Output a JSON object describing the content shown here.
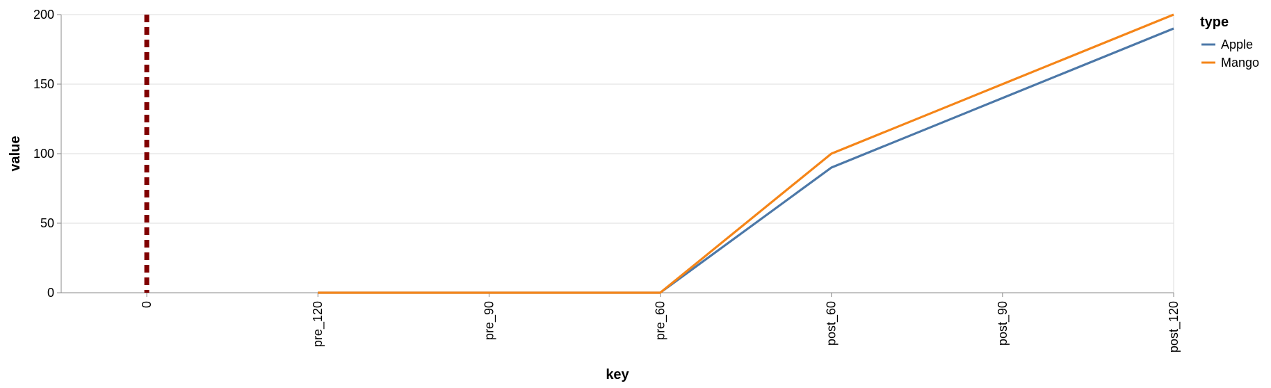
{
  "chart_data": {
    "type": "line",
    "xlabel": "key",
    "ylabel": "value",
    "categories": [
      "0",
      "pre_120",
      "pre_90",
      "pre_60",
      "post_60",
      "post_90",
      "post_120"
    ],
    "ylim": [
      0,
      200
    ],
    "yticks": [
      0,
      50,
      100,
      150,
      200
    ],
    "grid": true,
    "legend": {
      "title": "type",
      "placement": "top-right"
    },
    "series": [
      {
        "name": "Apple",
        "color": "#4c78a8",
        "x": [
          "pre_120",
          "pre_90",
          "pre_60",
          "post_60",
          "post_90",
          "post_120"
        ],
        "values": [
          0,
          0,
          0,
          90,
          140,
          190
        ]
      },
      {
        "name": "Mango",
        "color": "#f58518",
        "x": [
          "pre_120",
          "pre_90",
          "pre_60",
          "post_60",
          "post_90",
          "post_120"
        ],
        "values": [
          0,
          0,
          0,
          100,
          150,
          200
        ]
      }
    ],
    "rule": {
      "x": "0",
      "color": "#800000",
      "style": "dashed"
    }
  }
}
